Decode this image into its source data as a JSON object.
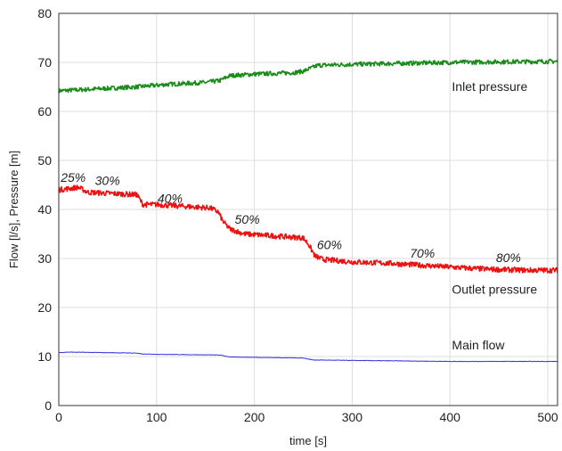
{
  "chart_data": {
    "type": "line",
    "title": "",
    "xlabel": "time [s]",
    "ylabel": "Flow [l/s], Pressure [m]",
    "xlim": [
      0,
      510
    ],
    "ylim": [
      0,
      80
    ],
    "xticks": [
      0,
      100,
      200,
      300,
      400,
      500
    ],
    "yticks": [
      0,
      10,
      20,
      30,
      40,
      50,
      60,
      70,
      80
    ],
    "grid": true,
    "series": [
      {
        "name": "Inlet pressure",
        "color": "#1a8c1a",
        "noise": 0.45,
        "x": [
          0,
          40,
          80,
          110,
          150,
          165,
          175,
          200,
          240,
          250,
          265,
          300,
          350,
          400,
          450,
          510
        ],
        "y": [
          64.2,
          64.6,
          65.0,
          65.5,
          65.9,
          66.3,
          67.3,
          67.6,
          67.9,
          68.2,
          69.4,
          69.6,
          69.8,
          70.0,
          70.1,
          70.2
        ]
      },
      {
        "name": "Outlet pressure",
        "color": "#ee1111",
        "noise": 0.55,
        "x": [
          0,
          20,
          30,
          80,
          86,
          100,
          155,
          163,
          168,
          175,
          190,
          250,
          255,
          262,
          270,
          300,
          340,
          380,
          420,
          440,
          480,
          510
        ],
        "y": [
          44.0,
          44.5,
          43.5,
          43.0,
          41.0,
          41.0,
          40.3,
          39.5,
          37.5,
          36.0,
          35.0,
          34.2,
          33.0,
          30.5,
          29.8,
          29.3,
          29.0,
          28.5,
          28.0,
          27.8,
          27.6,
          27.6
        ]
      },
      {
        "name": "Main flow",
        "color": "#3333dd",
        "noise": 0.05,
        "x": [
          0,
          10,
          80,
          85,
          165,
          175,
          250,
          260,
          300,
          400,
          510
        ],
        "y": [
          10.8,
          10.9,
          10.7,
          10.5,
          10.3,
          9.9,
          9.7,
          9.3,
          9.2,
          9.0,
          9.0
        ]
      }
    ],
    "series_labels": [
      {
        "text": "Inlet pressure",
        "x": 402,
        "y": 64.2
      },
      {
        "text": "Outlet pressure",
        "x": 402,
        "y": 22.8
      },
      {
        "text": "Main flow",
        "x": 402,
        "y": 11.5
      }
    ],
    "annotations": [
      {
        "text": "25%",
        "x": 2,
        "y": 45.6
      },
      {
        "text": "30%",
        "x": 37,
        "y": 45.0
      },
      {
        "text": "40%",
        "x": 101,
        "y": 41.4
      },
      {
        "text": "50%",
        "x": 180,
        "y": 37.1
      },
      {
        "text": "60%",
        "x": 264,
        "y": 31.9
      },
      {
        "text": "70%",
        "x": 359,
        "y": 30.2
      },
      {
        "text": "80%",
        "x": 447,
        "y": 29.3
      }
    ]
  }
}
